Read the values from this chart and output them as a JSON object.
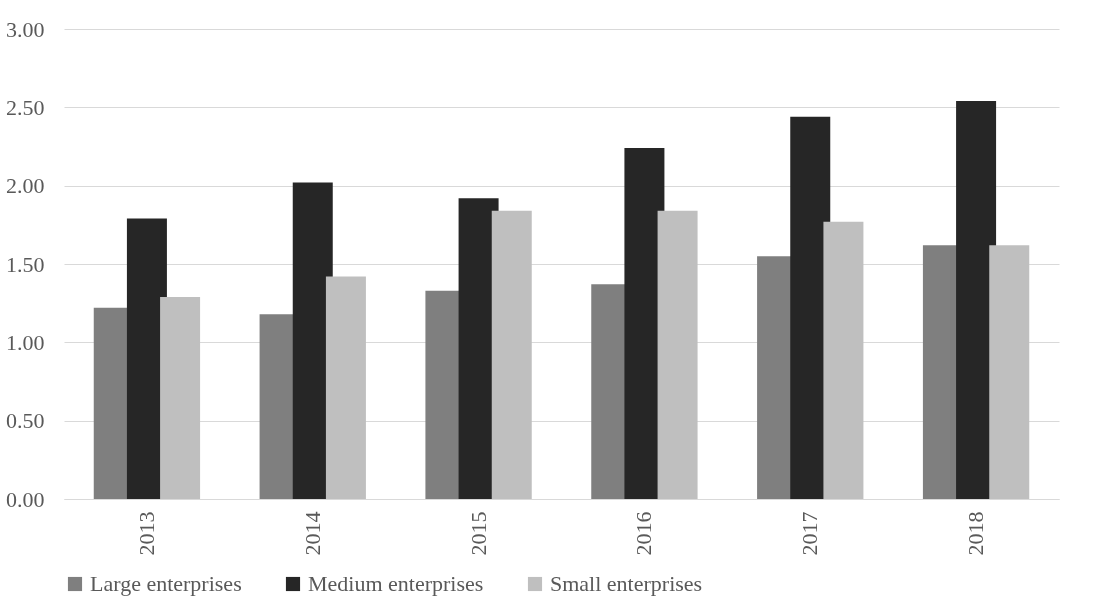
{
  "chart_data": {
    "type": "bar",
    "categories": [
      "2013",
      "2014",
      "2015",
      "2016",
      "2017",
      "2018"
    ],
    "series": [
      {
        "name": "Large enterprises",
        "color": "#7f7f7f",
        "values": [
          1.22,
          1.18,
          1.33,
          1.37,
          1.55,
          1.62
        ]
      },
      {
        "name": "Medium enterprises",
        "color": "#262626",
        "values": [
          1.79,
          2.02,
          1.92,
          2.24,
          2.44,
          2.54
        ]
      },
      {
        "name": "Small enterprises",
        "color": "#bfbfbf",
        "values": [
          1.29,
          1.42,
          1.84,
          1.84,
          1.77,
          1.62
        ]
      }
    ],
    "ylim": [
      0,
      3
    ],
    "yticks": [
      {
        "value": 0,
        "label": "0.00"
      },
      {
        "value": 0.5,
        "label": "0.50"
      },
      {
        "value": 1,
        "label": "1.00"
      },
      {
        "value": 1.5,
        "label": "1.50"
      },
      {
        "value": 2,
        "label": "2.00"
      },
      {
        "value": 2.5,
        "label": "2.50"
      },
      {
        "value": 3,
        "label": "3.00"
      }
    ],
    "grid": "y",
    "legend": "bottom"
  }
}
